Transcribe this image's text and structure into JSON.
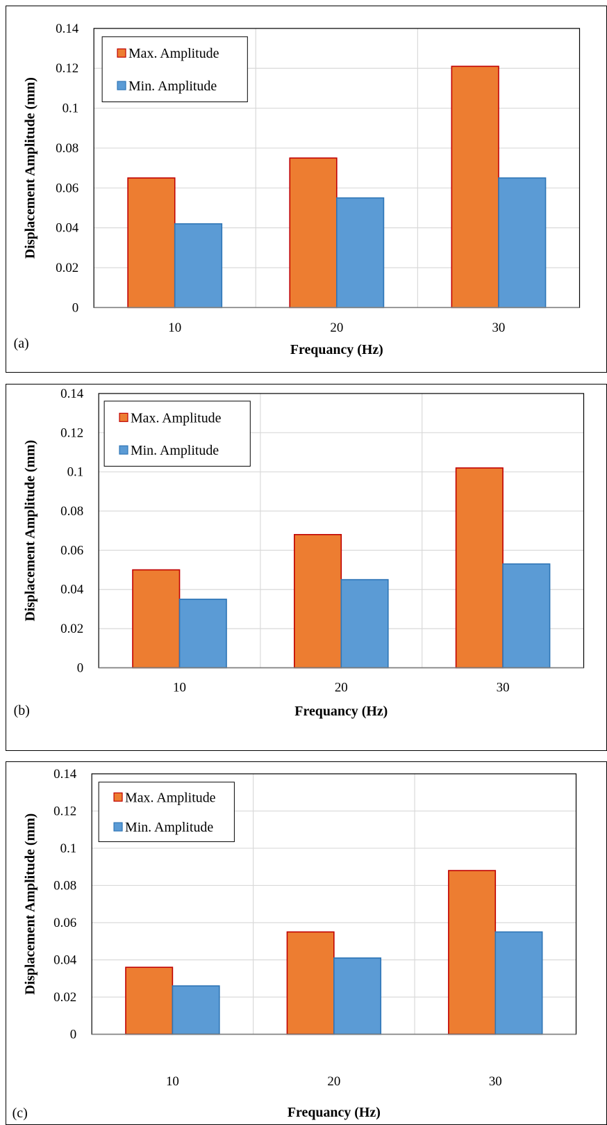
{
  "chart_data": [
    {
      "type": "bar",
      "panel_label": "(a)",
      "categories": [
        "10",
        "20",
        "30"
      ],
      "series": [
        {
          "name": "Max. Amplitude",
          "values": [
            0.065,
            0.075,
            0.121
          ]
        },
        {
          "name": "Min. Amplitude",
          "values": [
            0.042,
            0.055,
            0.065
          ]
        }
      ],
      "xlabel": "Frequancy (Hz)",
      "ylabel": "Displacement Amplitude (mm)",
      "ylim": [
        0,
        0.14
      ],
      "yticks": [
        "0",
        "0.02",
        "0.04",
        "0.06",
        "0.08",
        "0.1",
        "0.12",
        "0.14"
      ],
      "grid": true,
      "legend_position": "top-left"
    },
    {
      "type": "bar",
      "panel_label": "(b)",
      "categories": [
        "10",
        "20",
        "30"
      ],
      "series": [
        {
          "name": "Max. Amplitude",
          "values": [
            0.05,
            0.068,
            0.102
          ]
        },
        {
          "name": "Min. Amplitude",
          "values": [
            0.035,
            0.045,
            0.053
          ]
        }
      ],
      "xlabel": "Frequancy (Hz)",
      "ylabel": "Displacement Amplitude (mm)",
      "ylim": [
        0,
        0.14
      ],
      "yticks": [
        "0",
        "0.02",
        "0.04",
        "0.06",
        "0.08",
        "0.1",
        "0.12",
        "0.14"
      ],
      "grid": true,
      "legend_position": "top-left"
    },
    {
      "type": "bar",
      "panel_label": "(c)",
      "categories": [
        "10",
        "20",
        "30"
      ],
      "series": [
        {
          "name": "Max. Amplitude",
          "values": [
            0.036,
            0.055,
            0.088
          ]
        },
        {
          "name": "Min. Amplitude",
          "values": [
            0.026,
            0.041,
            0.055
          ]
        }
      ],
      "xlabel": "Frequancy (Hz)",
      "ylabel": "Displacement Amplitude (mm)",
      "ylim": [
        0,
        0.14
      ],
      "yticks": [
        "0",
        "0.02",
        "0.04",
        "0.06",
        "0.08",
        "0.1",
        "0.12",
        "0.14"
      ],
      "grid": true,
      "legend_position": "top-left"
    }
  ],
  "colors": {
    "max_fill": "#ED7D31",
    "max_stroke": "#C00000",
    "min_fill": "#5B9BD5",
    "min_stroke": "#2E75B6",
    "grid": "#D9D9D9",
    "axis": "#000000"
  }
}
